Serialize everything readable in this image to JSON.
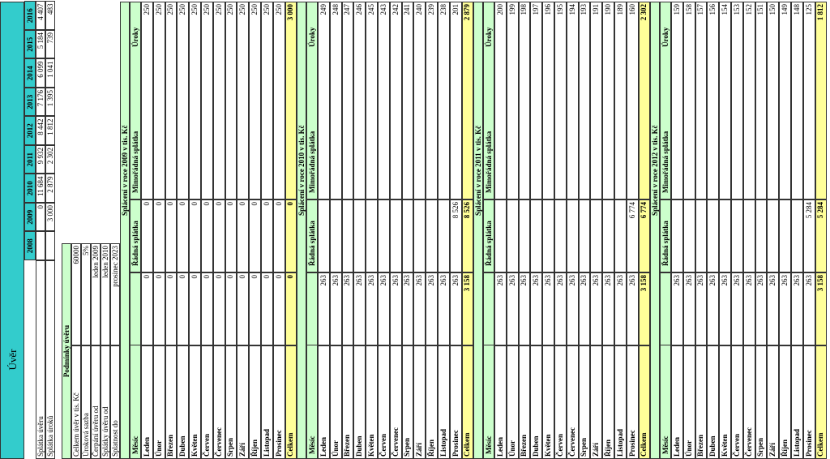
{
  "title": "Úvěr",
  "summary": {
    "years": [
      "2008",
      "2009",
      "2010",
      "2011",
      "2012",
      "2013",
      "2014",
      "2015",
      "2016"
    ],
    "rows": [
      {
        "label": "Splátka úvěru",
        "values": [
          null,
          "0",
          "11 684",
          "9 932",
          "8 442",
          "7 176",
          "6 099",
          "5 184",
          "4 407"
        ]
      },
      {
        "label": "Splátka úroků",
        "values": [
          null,
          "3 000",
          "2 879",
          "2 302",
          "1 812",
          "1 395",
          "1 041",
          "739",
          "483"
        ]
      }
    ]
  },
  "conditions": {
    "title": "Podmínky úvěru",
    "rows": [
      [
        "Celkem úvěr v tis. Kč",
        "60000"
      ],
      [
        "Úroková sazba",
        "5%"
      ],
      [
        "Čerpání úvěru od",
        "leden 2009"
      ],
      [
        "Splátky úvěru od",
        "leden 2010"
      ],
      [
        "Splatnost do",
        "prosinec 2023"
      ]
    ]
  },
  "blocks": [
    {
      "title": "Splácení v roce 2009 v tis. Kč",
      "headers": [
        "Měsíc",
        "Řádná splátka",
        "Mimořádná splátka",
        "Úroky"
      ],
      "rows": [
        [
          "Leden",
          "0",
          "0",
          "250"
        ],
        [
          "Únor",
          "0",
          "0",
          "250"
        ],
        [
          "Březen",
          "0",
          "0",
          "250"
        ],
        [
          "Duben",
          "0",
          "0",
          "250"
        ],
        [
          "Květen",
          "0",
          "0",
          "250"
        ],
        [
          "Červen",
          "0",
          "0",
          "250"
        ],
        [
          "Červenec",
          "0",
          "0",
          "250"
        ],
        [
          "Srpen",
          "0",
          "0",
          "250"
        ],
        [
          "Září",
          "0",
          "0",
          "250"
        ],
        [
          "Říjen",
          "0",
          "0",
          "250"
        ],
        [
          "Listopad",
          "0",
          "0",
          "250"
        ],
        [
          "Prosinec",
          "0",
          "0",
          "250"
        ]
      ],
      "total": [
        "Celkem",
        "0",
        "0",
        "3 000"
      ]
    },
    {
      "title": "Splácení v roce 2010 v tis. Kč",
      "headers": [
        "Měsíc",
        "Řádná splátka",
        "Mimořádná splátka",
        "Úroky"
      ],
      "rows": [
        [
          "Leden",
          "263",
          null,
          "249"
        ],
        [
          "Únor",
          "263",
          null,
          "248"
        ],
        [
          "Březen",
          "263",
          null,
          "247"
        ],
        [
          "Duben",
          "263",
          null,
          "246"
        ],
        [
          "Květen",
          "263",
          null,
          "245"
        ],
        [
          "Červen",
          "263",
          null,
          "243"
        ],
        [
          "Červenec",
          "263",
          null,
          "242"
        ],
        [
          "Srpen",
          "263",
          null,
          "241"
        ],
        [
          "Září",
          "263",
          null,
          "240"
        ],
        [
          "Říjen",
          "263",
          null,
          "239"
        ],
        [
          "Listopad",
          "263",
          null,
          "238"
        ],
        [
          "Prosinec",
          "263",
          "8 526",
          "201"
        ]
      ],
      "total": [
        "Celkem",
        "3 158",
        "8 526",
        "2 879"
      ]
    },
    {
      "title": "Splácení v roce 2011 v tis. Kč",
      "headers": [
        "Měsíc",
        "Řádná splátka",
        "Mimořádná splátka",
        "Úroky"
      ],
      "rows": [
        [
          "Leden",
          "263",
          null,
          "200"
        ],
        [
          "Únor",
          "263",
          null,
          "199"
        ],
        [
          "Březen",
          "263",
          null,
          "198"
        ],
        [
          "Duben",
          "263",
          null,
          "197"
        ],
        [
          "Květen",
          "263",
          null,
          "196"
        ],
        [
          "Červen",
          "263",
          null,
          "195"
        ],
        [
          "Červenec",
          "263",
          null,
          "194"
        ],
        [
          "Srpen",
          "263",
          null,
          "193"
        ],
        [
          "Září",
          "263",
          null,
          "191"
        ],
        [
          "Říjen",
          "263",
          null,
          "190"
        ],
        [
          "Listopad",
          "263",
          null,
          "189"
        ],
        [
          "Prosinec",
          "263",
          "6 774",
          "160"
        ]
      ],
      "total": [
        "Celkem",
        "3 158",
        "6 774",
        "2 302"
      ]
    },
    {
      "title": "Splácení v roce 2012 v tis. Kč",
      "headers": [
        "Měsíc",
        "Řádná splátka",
        "Mimořádná splátka",
        "Úroky"
      ],
      "rows": [
        [
          "Leden",
          "263",
          null,
          "159"
        ],
        [
          "Únor",
          "263",
          null,
          "158"
        ],
        [
          "Březen",
          "263",
          null,
          "157"
        ],
        [
          "Duben",
          "263",
          null,
          "156"
        ],
        [
          "Květen",
          "263",
          null,
          "154"
        ],
        [
          "Červen",
          "263",
          null,
          "153"
        ],
        [
          "Červenec",
          "263",
          null,
          "152"
        ],
        [
          "Srpen",
          "263",
          null,
          "151"
        ],
        [
          "Září",
          "263",
          null,
          "150"
        ],
        [
          "Říjen",
          "263",
          null,
          "149"
        ],
        [
          "Listopad",
          "263",
          null,
          "148"
        ],
        [
          "Prosinec",
          "263",
          "5 284",
          "125"
        ]
      ],
      "total": [
        "Celkem",
        "3 158",
        "5 284",
        "1 812"
      ]
    }
  ]
}
